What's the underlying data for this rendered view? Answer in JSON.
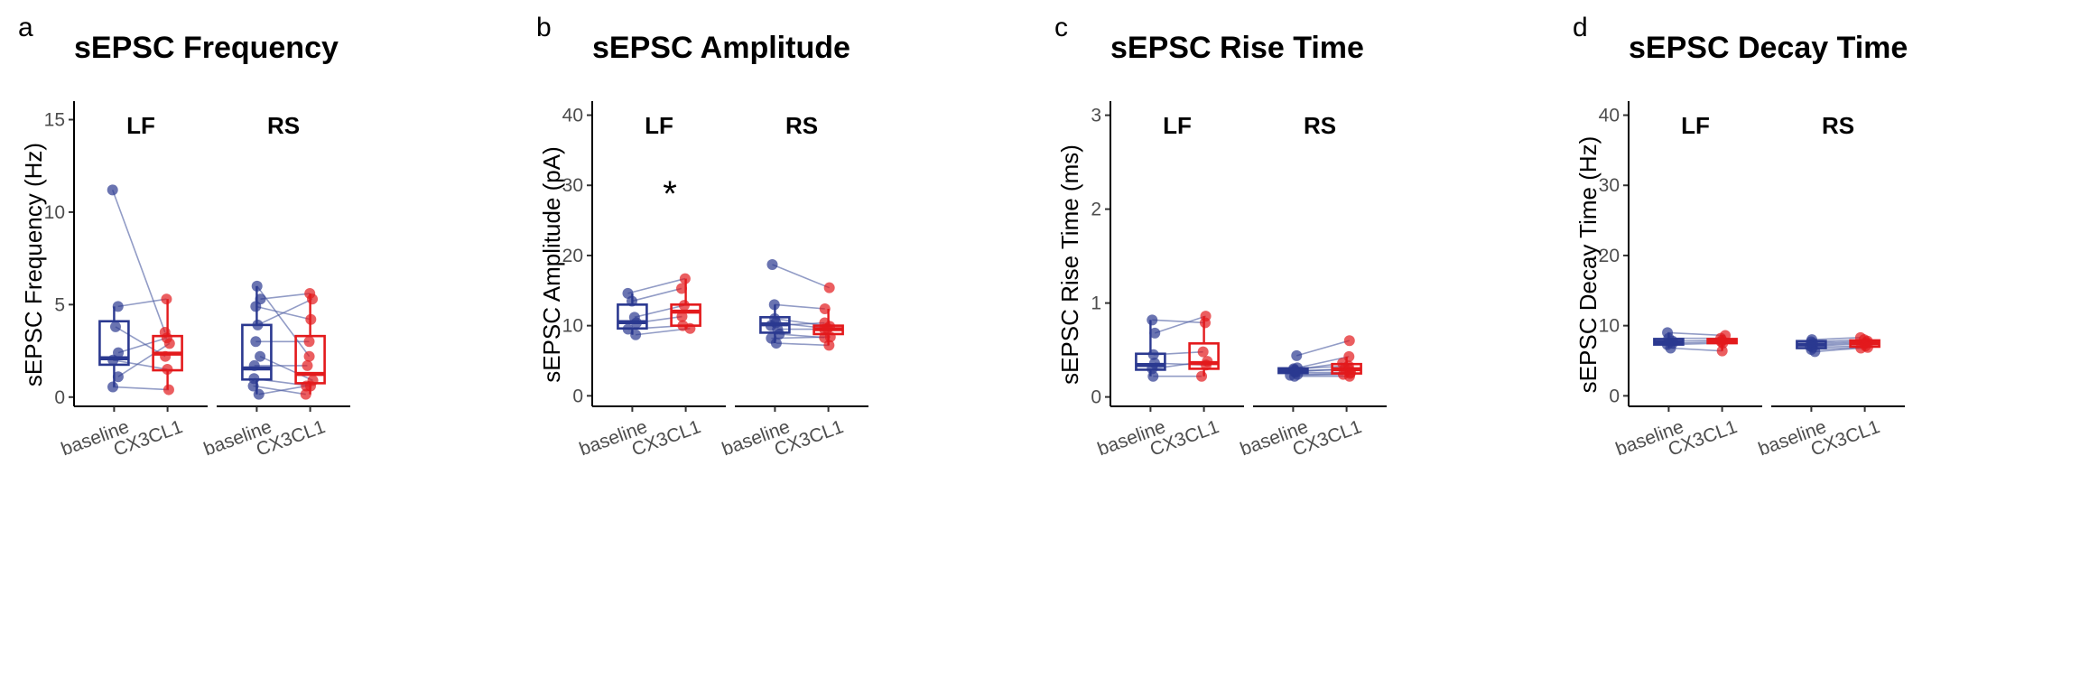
{
  "colors": {
    "baseline": "#2b3990",
    "cx3cl1": "#e31a1c",
    "pair_line": "#4a5aa0"
  },
  "chart_data": [
    {
      "type": "box",
      "panel_letter": "a",
      "title": "sEPSC Frequency",
      "ylabel": "sEPSC Frequency (Hz)",
      "ylim": [
        -0.5,
        16
      ],
      "yticks": [
        0,
        5,
        10,
        15
      ],
      "categories": [
        "baseline",
        "CX3CL1"
      ],
      "facets": [
        {
          "label": "LF",
          "significance": "",
          "baseline": [
            11.2,
            4.9,
            3.8,
            2.4,
            2.0,
            1.1,
            0.55
          ],
          "cx3cl1": [
            3.5,
            5.3,
            2.2,
            3.2,
            1.5,
            2.9,
            0.4
          ],
          "box_baseline": {
            "q1": 1.75,
            "median": 2.1,
            "q3": 4.1,
            "min": 0.55,
            "max": 4.9
          },
          "box_cx3cl1": {
            "q1": 1.45,
            "median": 2.35,
            "q3": 3.3,
            "min": 0.4,
            "max": 5.3
          }
        },
        {
          "label": "RS",
          "significance": "",
          "baseline": [
            6.0,
            5.3,
            4.9,
            3.9,
            3.0,
            2.2,
            1.7,
            1.0,
            0.6,
            0.15
          ],
          "cx3cl1": [
            2.2,
            5.6,
            4.2,
            5.3,
            3.0,
            0.9,
            1.7,
            0.6,
            0.15,
            0.6
          ],
          "box_baseline": {
            "q1": 0.95,
            "median": 1.55,
            "q3": 3.9,
            "min": 0.15,
            "max": 6.0
          },
          "box_cx3cl1": {
            "q1": 0.75,
            "median": 1.25,
            "q3": 3.3,
            "min": 0.15,
            "max": 5.6
          }
        }
      ]
    },
    {
      "type": "box",
      "panel_letter": "b",
      "title": "sEPSC Amplitude",
      "ylabel": "sEPSC Amplitude (pA)",
      "ylim": [
        -1.5,
        42
      ],
      "yticks": [
        0,
        10,
        20,
        30,
        40
      ],
      "categories": [
        "baseline",
        "CX3CL1"
      ],
      "facets": [
        {
          "label": "LF",
          "significance": "*",
          "baseline": [
            14.6,
            13.5,
            11.2,
            10.4,
            9.5,
            8.7
          ],
          "cx3cl1": [
            16.7,
            15.3,
            12.9,
            11.3,
            10.0,
            9.6
          ],
          "box_baseline": {
            "q1": 9.6,
            "median": 10.5,
            "q3": 13.0,
            "min": 8.7,
            "max": 14.6
          },
          "box_cx3cl1": {
            "q1": 10.0,
            "median": 12.0,
            "q3": 13.0,
            "min": 9.6,
            "max": 16.7
          }
        },
        {
          "label": "RS",
          "significance": "",
          "baseline": [
            18.7,
            13.0,
            11.0,
            10.4,
            10.0,
            9.5,
            8.8,
            8.2,
            7.5
          ],
          "cx3cl1": [
            15.4,
            12.4,
            9.9,
            9.6,
            10.4,
            9.5,
            8.3,
            8.4,
            7.2
          ],
          "box_baseline": {
            "q1": 9.0,
            "median": 10.2,
            "q3": 11.2,
            "min": 7.5,
            "max": 13.0
          },
          "box_cx3cl1": {
            "q1": 8.8,
            "median": 9.5,
            "q3": 10.0,
            "min": 7.2,
            "max": 12.4
          }
        }
      ]
    },
    {
      "type": "box",
      "panel_letter": "c",
      "title": "sEPSC Rise Time",
      "ylabel": "sEPSC Rise Time (ms)",
      "ylim": [
        -0.1,
        3.15
      ],
      "yticks": [
        0,
        1,
        2,
        3
      ],
      "categories": [
        "baseline",
        "CX3CL1"
      ],
      "facets": [
        {
          "label": "LF",
          "significance": "",
          "baseline": [
            0.82,
            0.68,
            0.45,
            0.36,
            0.3,
            0.22
          ],
          "cx3cl1": [
            0.79,
            0.86,
            0.48,
            0.34,
            0.38,
            0.22
          ],
          "box_baseline": {
            "q1": 0.29,
            "median": 0.34,
            "q3": 0.46,
            "min": 0.22,
            "max": 0.82
          },
          "box_cx3cl1": {
            "q1": 0.3,
            "median": 0.36,
            "q3": 0.57,
            "min": 0.22,
            "max": 0.86
          }
        },
        {
          "label": "RS",
          "significance": "",
          "baseline": [
            0.44,
            0.31,
            0.3,
            0.29,
            0.28,
            0.27,
            0.26,
            0.24,
            0.23,
            0.22
          ],
          "cx3cl1": [
            0.6,
            0.43,
            0.33,
            0.36,
            0.29,
            0.3,
            0.26,
            0.25,
            0.24,
            0.22
          ],
          "box_baseline": {
            "q1": 0.255,
            "median": 0.28,
            "q3": 0.305,
            "min": 0.22,
            "max": 0.31
          },
          "box_cx3cl1": {
            "q1": 0.25,
            "median": 0.295,
            "q3": 0.35,
            "min": 0.22,
            "max": 0.43
          }
        }
      ]
    },
    {
      "type": "box",
      "panel_letter": "d",
      "title": "sEPSC Decay Time",
      "ylabel": "sEPSC Decay Time (Hz)",
      "ylim": [
        -1.5,
        42
      ],
      "yticks": [
        0,
        10,
        20,
        30,
        40
      ],
      "categories": [
        "baseline",
        "CX3CL1"
      ],
      "facets": [
        {
          "label": "LF",
          "significance": "",
          "baseline": [
            9.0,
            8.2,
            7.8,
            7.5,
            7.3,
            6.8
          ],
          "cx3cl1": [
            8.6,
            8.2,
            7.9,
            7.7,
            7.5,
            6.4
          ],
          "box_baseline": {
            "q1": 7.3,
            "median": 7.65,
            "q3": 8.1,
            "min": 6.8,
            "max": 9.0
          },
          "box_cx3cl1": {
            "q1": 7.5,
            "median": 7.85,
            "q3": 8.1,
            "min": 6.4,
            "max": 8.6
          }
        },
        {
          "label": "RS",
          "significance": "",
          "baseline": [
            8.0,
            7.7,
            7.5,
            7.3,
            7.1,
            6.9,
            6.6,
            6.3
          ],
          "cx3cl1": [
            8.3,
            8.0,
            7.8,
            7.6,
            7.4,
            7.1,
            6.9,
            6.8
          ],
          "box_baseline": {
            "q1": 6.8,
            "median": 7.3,
            "q3": 7.8,
            "min": 6.3,
            "max": 8.0
          },
          "box_cx3cl1": {
            "q1": 7.0,
            "median": 7.5,
            "q3": 7.9,
            "min": 6.8,
            "max": 8.3
          }
        }
      ]
    }
  ]
}
